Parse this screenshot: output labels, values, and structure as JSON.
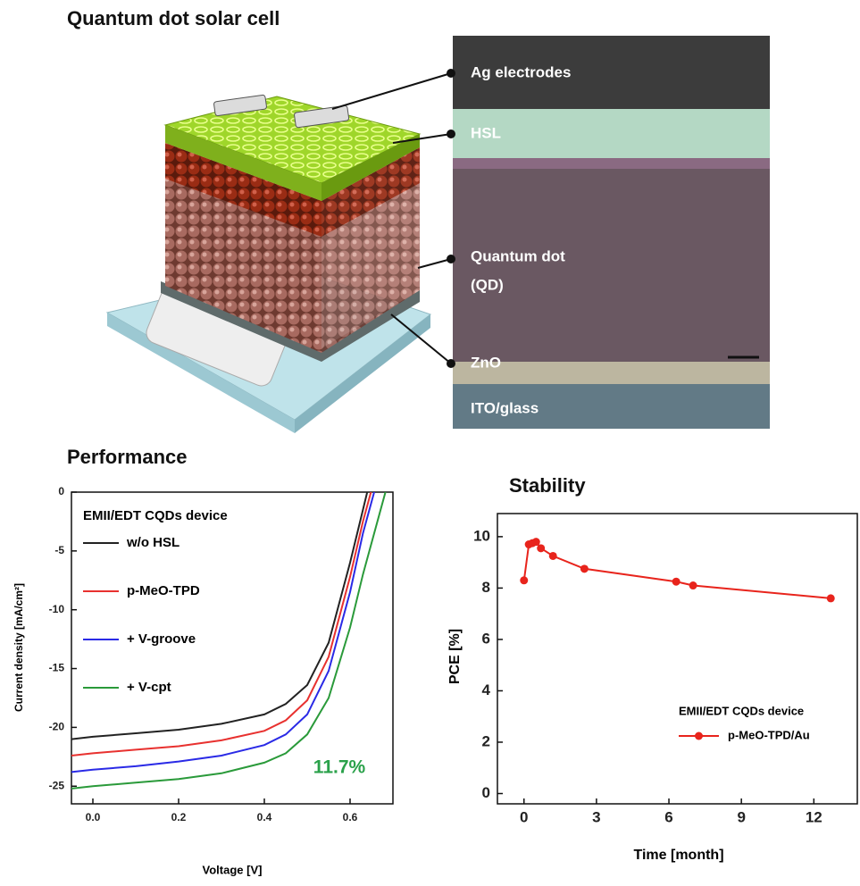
{
  "figure": {
    "title": "Quantum dot solar cell",
    "layers": [
      [
        "Ag electrodes"
      ],
      [
        "HSL"
      ],
      [
        "Quantum dot",
        "(QD)"
      ],
      [
        "ZnO"
      ],
      [
        "ITO/glass"
      ]
    ]
  },
  "chart_data": [
    {
      "type": "line",
      "title": "Performance",
      "x_label": "Voltage [V]",
      "y_label": "Current density [mA/cm²]",
      "legend_title": "EMII/EDT CQDs device",
      "annotation": "11.7%",
      "annotation_color": "#2aa14a",
      "x": [
        -0.05,
        0,
        0.1,
        0.2,
        0.3,
        0.4,
        0.45,
        0.5,
        0.55,
        0.6,
        0.63,
        0.66,
        0.69,
        0.7
      ],
      "series": [
        {
          "name": "w/o HSL",
          "color": "#222222",
          "values": [
            -21.0,
            -20.8,
            -20.5,
            -20.2,
            -19.7,
            -18.9,
            -18.0,
            -16.4,
            -12.8,
            -6.0,
            -1.5,
            3.0,
            null,
            null
          ]
        },
        {
          "name": "p-MeO-TPD",
          "color": "#e8312f",
          "values": [
            -22.4,
            -22.2,
            -21.9,
            -21.6,
            -21.1,
            -20.3,
            -19.4,
            -17.7,
            -14.0,
            -7.2,
            -2.5,
            1.5,
            null,
            null
          ]
        },
        {
          "name": "+ V-groove",
          "color": "#2a2ae6",
          "values": [
            -23.8,
            -23.6,
            -23.3,
            -22.9,
            -22.4,
            -21.5,
            -20.6,
            -18.9,
            -15.2,
            -8.5,
            -3.5,
            0.5,
            null,
            null
          ]
        },
        {
          "name": "+ V-cpt",
          "color": "#2a9a3a",
          "values": [
            -25.2,
            -25.0,
            -24.7,
            -24.4,
            -23.9,
            -23.0,
            -22.2,
            -20.6,
            -17.5,
            -11.5,
            -7.0,
            -3.0,
            1.0,
            null
          ]
        }
      ],
      "xlim": [
        -0.05,
        0.7
      ],
      "xticks": [
        {
          "value": 0,
          "label": "0.0"
        },
        0.2,
        0.4,
        0.6
      ],
      "ylim": [
        -26.5,
        0
      ],
      "yticks": [
        0,
        -5,
        -10,
        -15,
        -20,
        -25
      ],
      "markers": false
    },
    {
      "type": "line",
      "title": "Stability",
      "x_label": "Time [month]",
      "y_label": "PCE [%]",
      "legend_title": "EMII/EDT CQDs device",
      "x": [
        0,
        0.2,
        0.35,
        0.5,
        0.7,
        1.2,
        2.5,
        6.3,
        7,
        12.7
      ],
      "series": [
        {
          "name": "p-MeO-TPD/Au",
          "color": "#e8241c",
          "values": [
            8.3,
            9.7,
            9.75,
            9.8,
            9.55,
            9.25,
            8.75,
            8.25,
            8.1,
            7.6
          ]
        }
      ],
      "xlim": [
        -1.1,
        13.8
      ],
      "xticks": [
        0,
        3,
        6,
        9,
        12
      ],
      "ylim": [
        -0.4,
        10.9
      ],
      "yticks": [
        0,
        2,
        4,
        6,
        8,
        10
      ],
      "markers": true
    }
  ]
}
